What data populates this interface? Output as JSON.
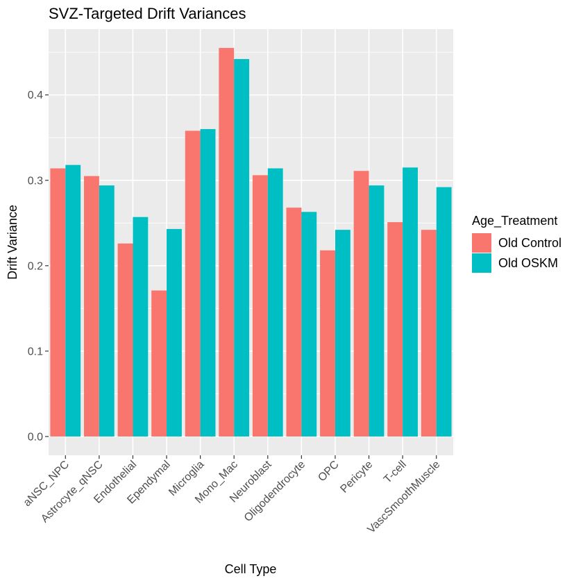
{
  "chart_data": {
    "type": "bar",
    "title": "SVZ-Targeted Drift Variances",
    "xlabel": "Cell Type",
    "ylabel": "Drift Variance",
    "categories": [
      "aNSC_NPC",
      "Astrocyte_qNSC",
      "Endothelial",
      "Ependymal",
      "Microglia",
      "Mono_Mac",
      "Neuroblast",
      "Oligodendrocyte",
      "OPC",
      "Pericyte",
      "T-cell",
      "VascSmoothMuscle"
    ],
    "series": [
      {
        "name": "Old Control",
        "color": "#F8766D",
        "values": [
          0.314,
          0.305,
          0.226,
          0.171,
          0.358,
          0.455,
          0.306,
          0.268,
          0.218,
          0.311,
          0.251,
          0.242
        ]
      },
      {
        "name": "Old OSKM",
        "color": "#00BFC4",
        "values": [
          0.318,
          0.294,
          0.257,
          0.243,
          0.36,
          0.442,
          0.314,
          0.263,
          0.242,
          0.294,
          0.315,
          0.292
        ]
      }
    ],
    "ylim": [
      -0.022,
      0.477
    ],
    "yticks": [
      0.0,
      0.1,
      0.2,
      0.3,
      0.4
    ],
    "ytick_labels": [
      "0.0",
      "0.1",
      "0.2",
      "0.3",
      "0.4"
    ],
    "grid": true,
    "legend": {
      "title": "Age_Treatment",
      "position": "right"
    }
  }
}
